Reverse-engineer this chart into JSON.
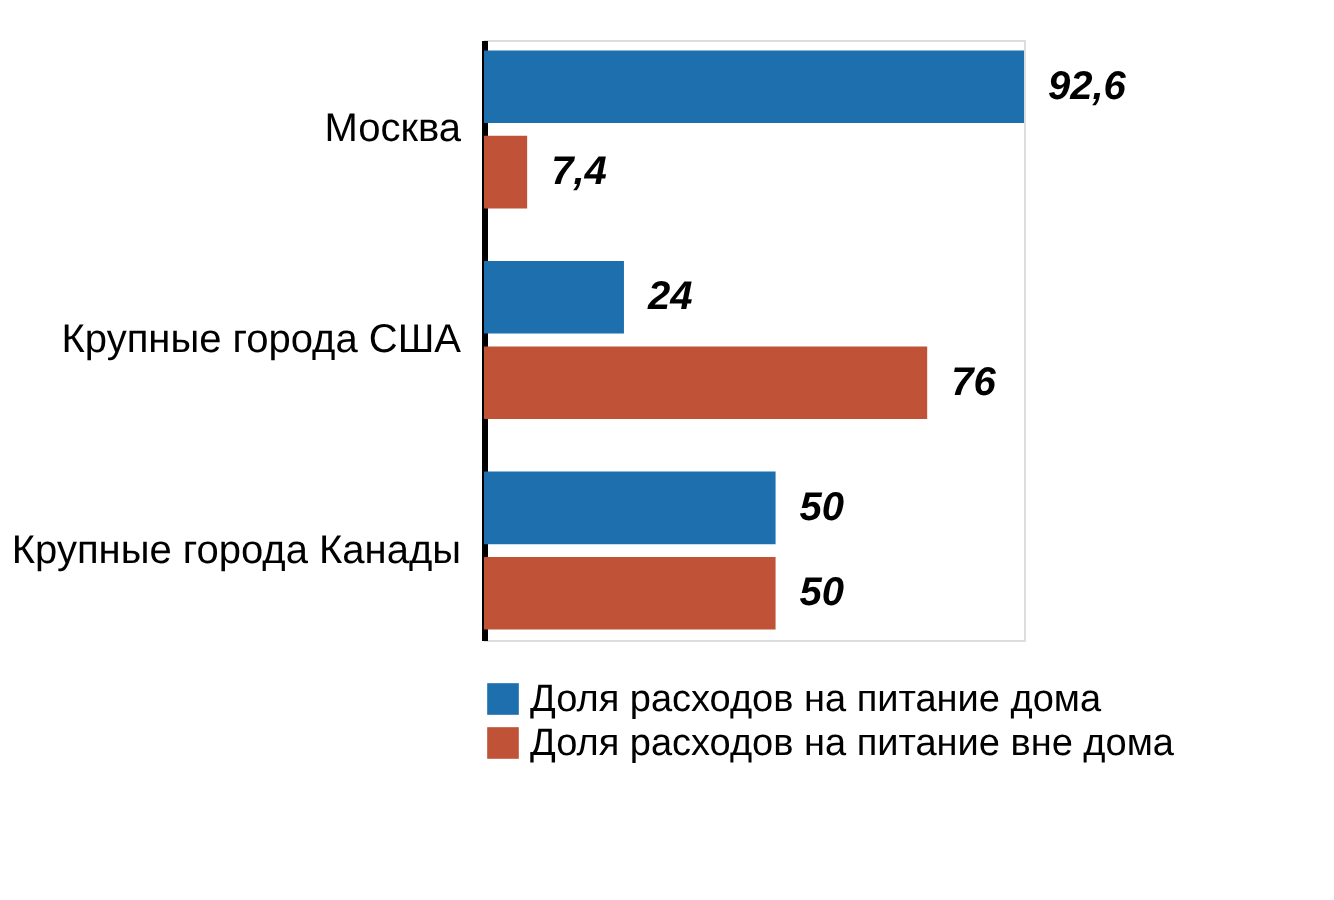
{
  "chart_data": {
    "type": "bar",
    "orientation": "horizontal",
    "categories": [
      "Москва",
      "Крупные города США",
      "Крупные города Канады"
    ],
    "series": [
      {
        "name": "Доля расходов на питание дома",
        "color": "#1d6fae",
        "values": [
          92.6,
          24,
          50
        ],
        "value_labels": [
          "92,6",
          "24",
          "50"
        ]
      },
      {
        "name": "Доля расходов на питание вне дома",
        "color": "#bf5237",
        "values": [
          7.4,
          76,
          50
        ],
        "value_labels": [
          "7,4",
          "76",
          "50"
        ]
      }
    ],
    "legend": "bottom",
    "tick_labels": "y",
    "grid": false
  }
}
